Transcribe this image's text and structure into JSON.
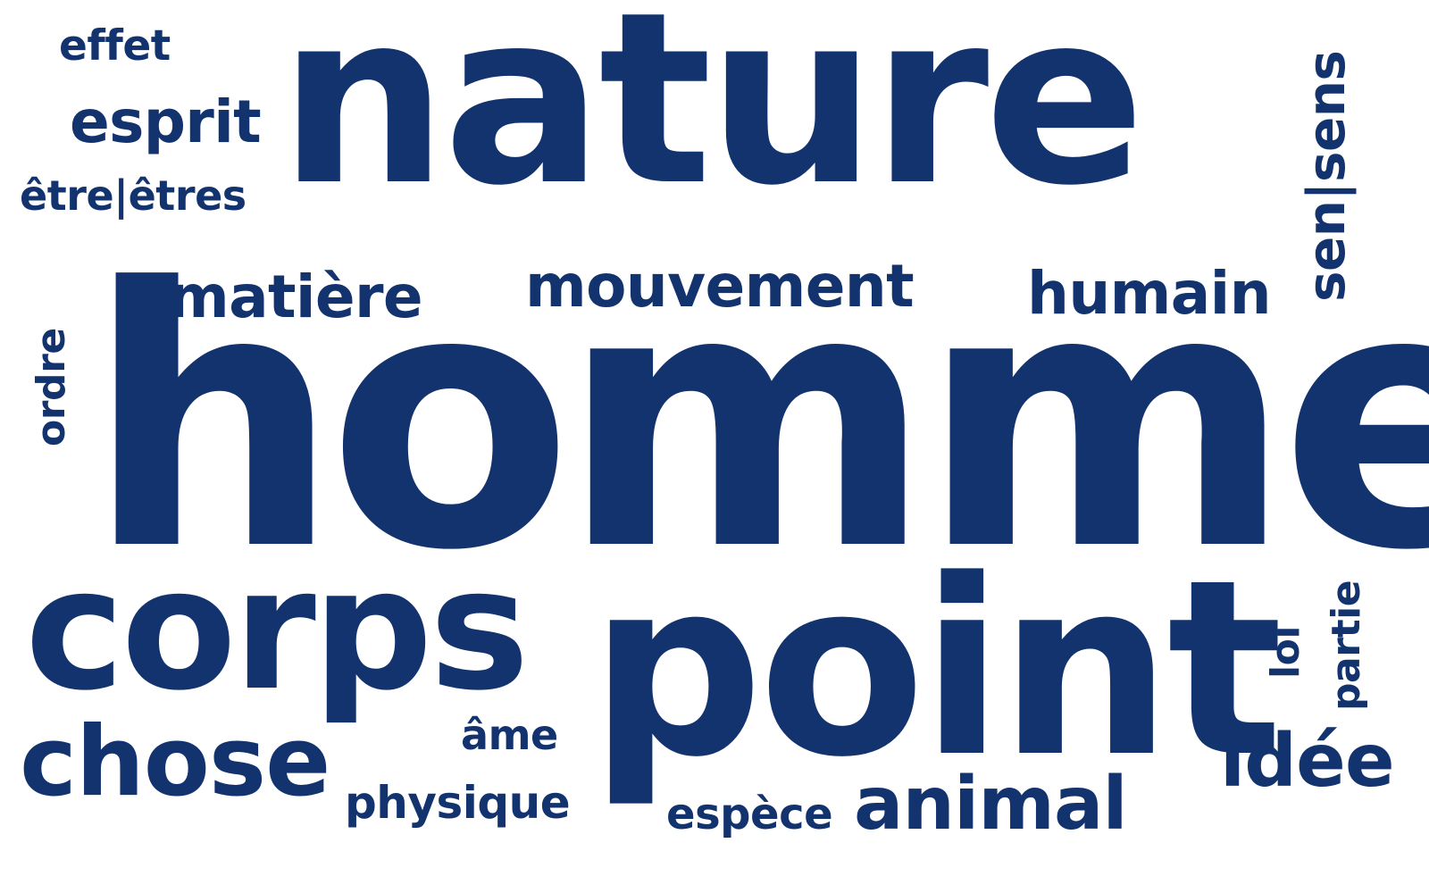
{
  "colors": {
    "word": "#13336f",
    "background": "#ffffff"
  },
  "words": {
    "homme": "homme",
    "nature": "nature",
    "point": "point",
    "corps": "corps",
    "chose": "chose",
    "animal": "animal",
    "humain": "humain",
    "mouvement": "mouvement",
    "matiere": "matière",
    "esprit": "esprit",
    "etre_etres": "être|êtres",
    "effet": "effet",
    "sen_sens": "sen|sens",
    "ordre": "ordre",
    "ame": "âme",
    "physique": "physique",
    "espece": "espèce",
    "idee": "idée",
    "loi": "loi",
    "partie": "partie"
  }
}
